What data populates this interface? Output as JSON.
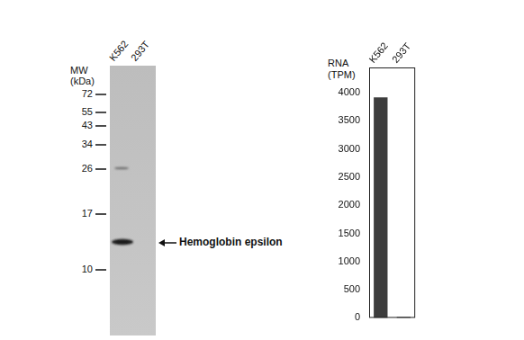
{
  "chart_data": {
    "type": "bar",
    "ylabel": "RNA\n(TPM)",
    "categories": [
      "K562",
      "293T"
    ],
    "values": [
      3920,
      20
    ],
    "color": "#3d3d3d",
    "ylim": [
      0,
      4450
    ],
    "yticks": [
      0,
      500,
      1000,
      1500,
      2000,
      2500,
      3000,
      3500,
      4000
    ],
    "grid": false
  },
  "blot": {
    "lanes": [
      "K562",
      "293T"
    ],
    "mw_label": "MW\n(kDa)",
    "mw_markers": [
      72,
      55,
      43,
      34,
      26,
      17,
      10
    ],
    "band_label": "Hemoglobin epsilon"
  }
}
